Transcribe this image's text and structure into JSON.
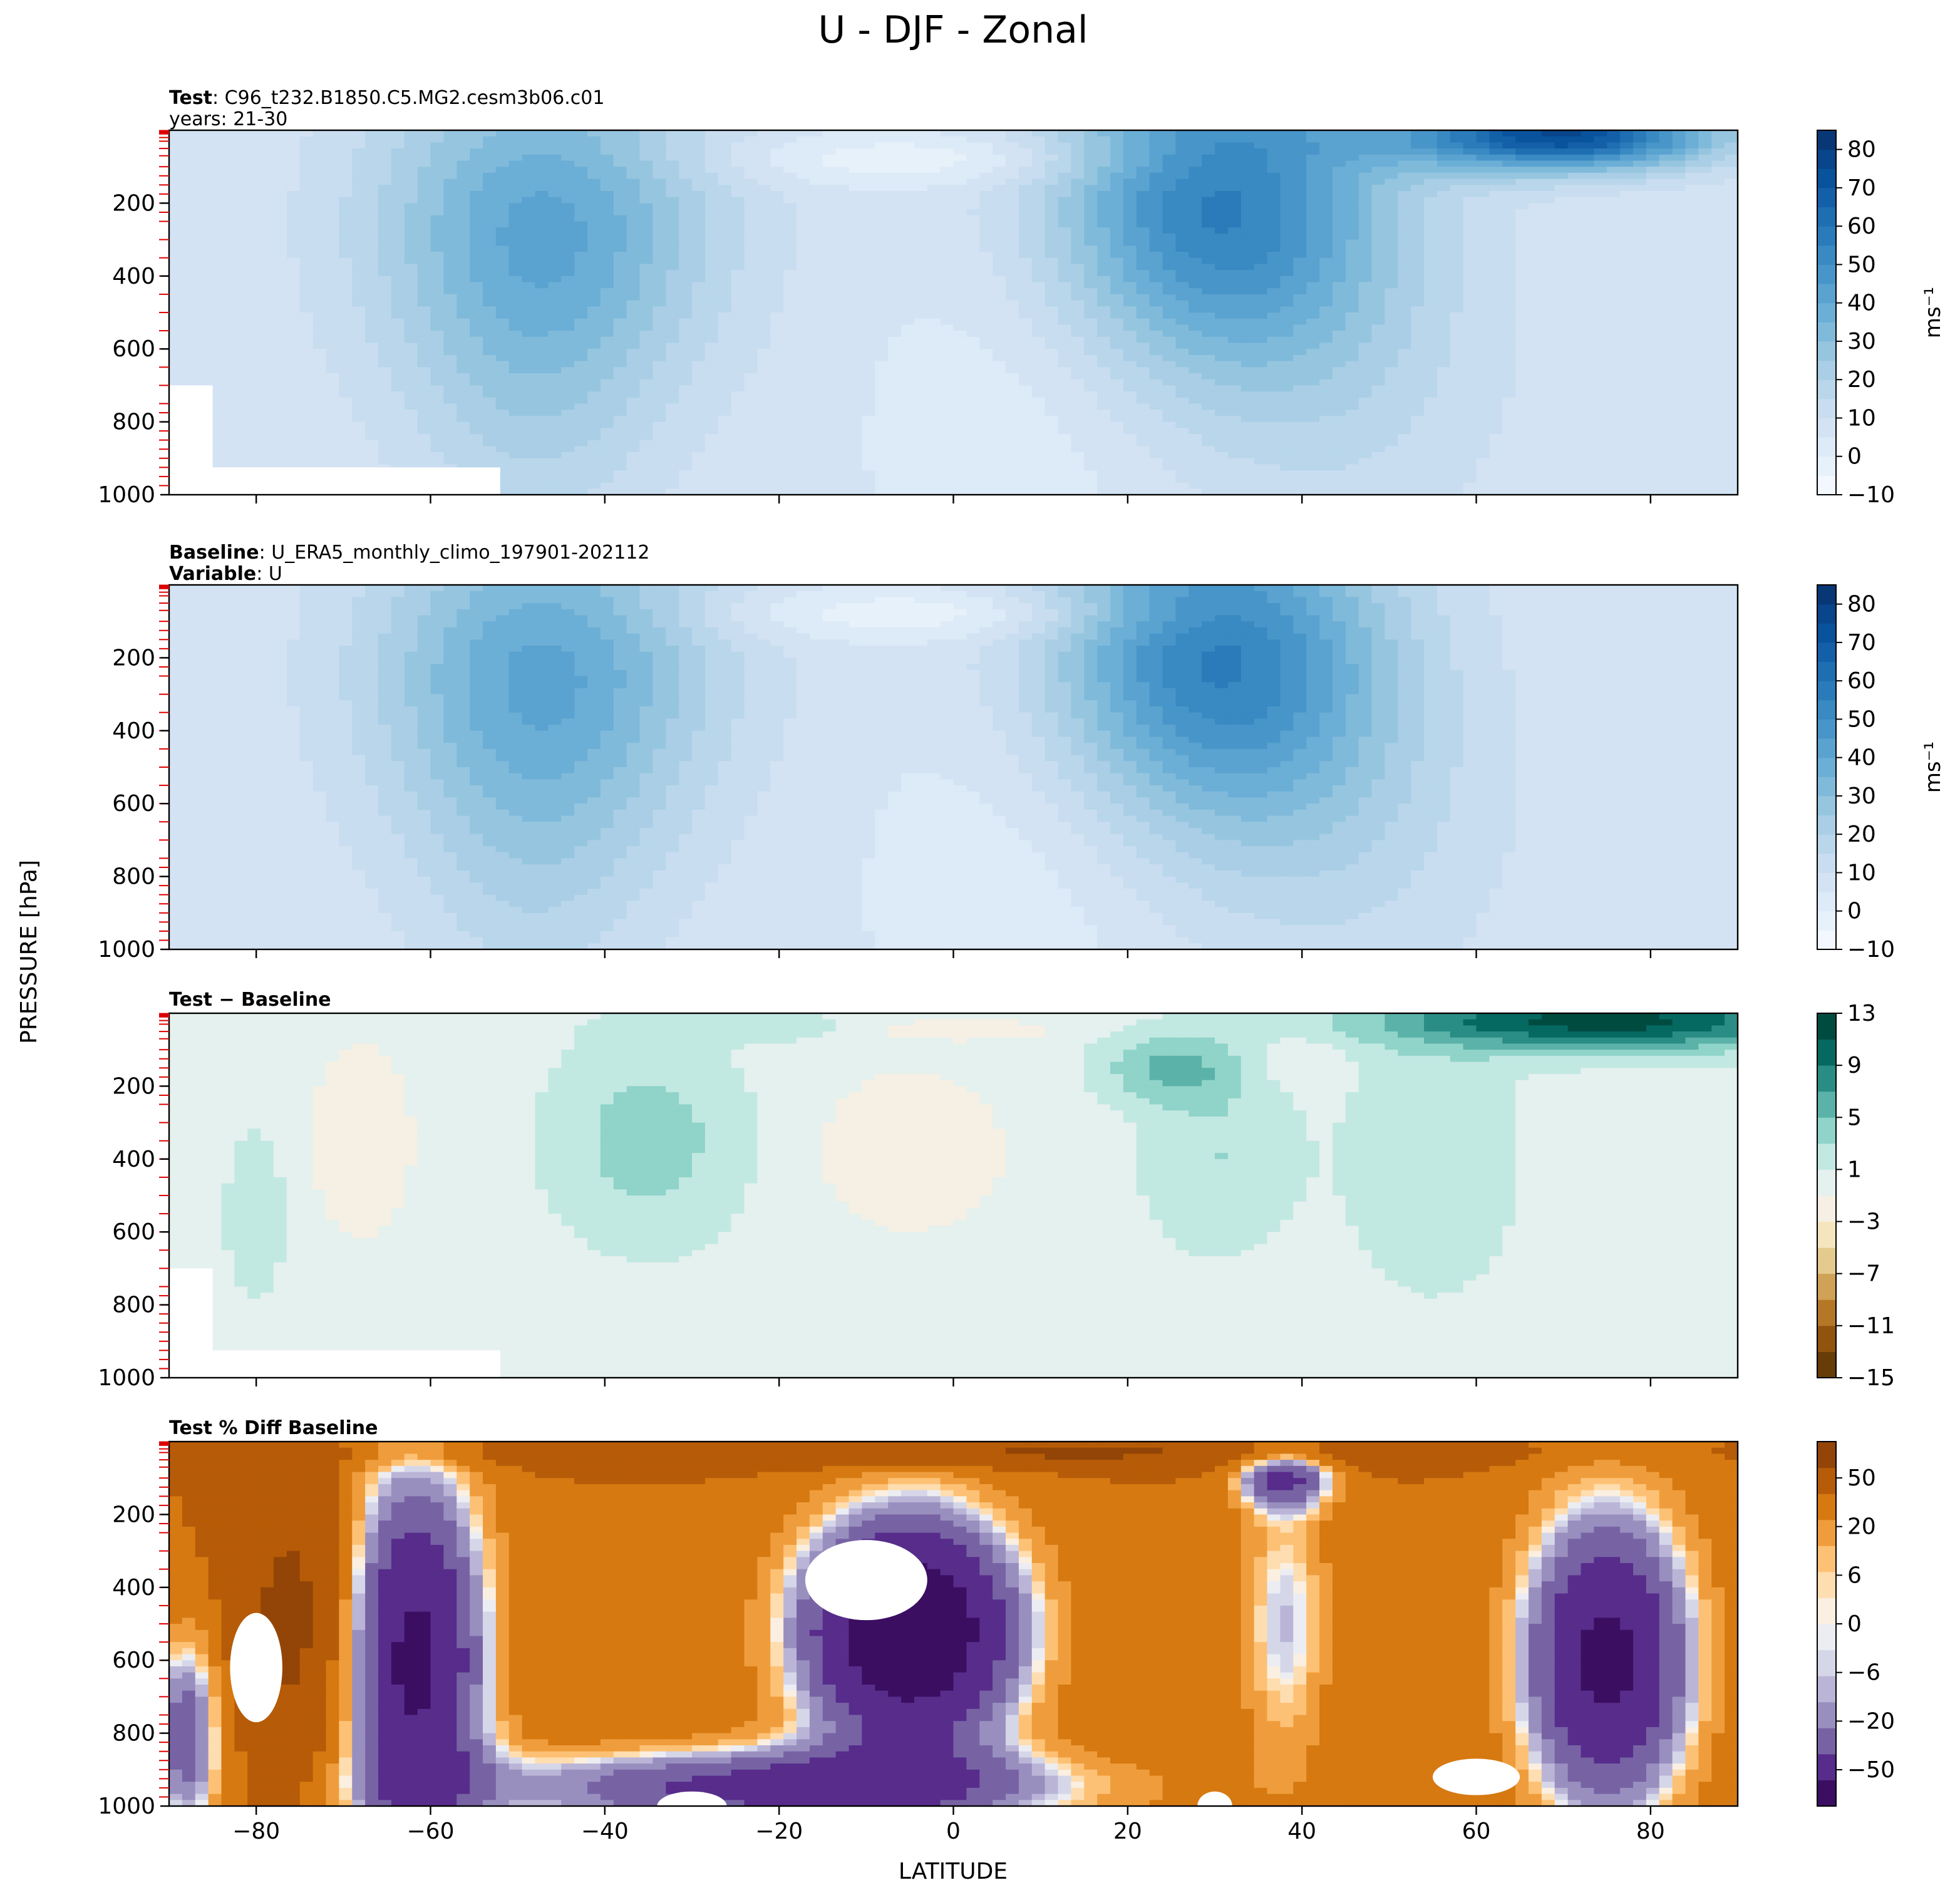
{
  "figure": {
    "title": "U - DJF - Zonal",
    "ylabel": "PRESSURE [hPa]",
    "xlabel": "LATITUDE"
  },
  "chart_data": [
    {
      "type": "heatmap",
      "panel": "test",
      "header": {
        "bold": "Test",
        "sep": ": ",
        "text": "C96_t232.B1850.C5.MG2.cesm3b06.c01",
        "line2": "years: 21-30"
      },
      "xlim": [
        -90,
        90
      ],
      "ylim": [
        1000,
        0
      ],
      "xticks": [
        -80,
        -60,
        -40,
        -20,
        0,
        20,
        40,
        60,
        80
      ],
      "yticks": [
        200,
        400,
        600,
        800,
        1000
      ],
      "colormap": "Blues",
      "colorbar": {
        "ticks": [
          "80",
          "70",
          "60",
          "50",
          "40",
          "30",
          "20",
          "10",
          "0",
          "−10"
        ],
        "vmin": -10,
        "vmax": 85,
        "label": "ms⁻¹"
      },
      "jets": [
        {
          "lat": -47,
          "p": 250,
          "u": 40
        },
        {
          "lat": 30,
          "p": 200,
          "u": 55
        },
        {
          "lat": 70,
          "p": 10,
          "u": 70
        }
      ]
    },
    {
      "type": "heatmap",
      "panel": "baseline",
      "header": {
        "bold": "Baseline",
        "sep": ": ",
        "text": "U_ERA5_monthly_climo_197901-202112",
        "bold2": "Variable",
        "sep2": ": ",
        "text2": "U"
      },
      "xlim": [
        -90,
        90
      ],
      "ylim": [
        1000,
        0
      ],
      "xticks": [
        -80,
        -60,
        -40,
        -20,
        0,
        20,
        40,
        60,
        80
      ],
      "yticks": [
        200,
        400,
        600,
        800,
        1000
      ],
      "colormap": "Blues",
      "colorbar": {
        "ticks": [
          "80",
          "70",
          "60",
          "50",
          "40",
          "30",
          "20",
          "10",
          "0",
          "−10"
        ],
        "vmin": -10,
        "vmax": 85,
        "label": "ms⁻¹"
      },
      "jets": [
        {
          "lat": -47,
          "p": 230,
          "u": 40
        },
        {
          "lat": 30,
          "p": 200,
          "u": 55
        }
      ]
    },
    {
      "type": "heatmap",
      "panel": "diff",
      "header": {
        "bold": "Test − Baseline"
      },
      "xlim": [
        -90,
        90
      ],
      "ylim": [
        1000,
        0
      ],
      "xticks": [
        -80,
        -60,
        -40,
        -20,
        0,
        20,
        40,
        60,
        80
      ],
      "yticks": [
        200,
        400,
        600,
        800,
        1000
      ],
      "colormap": "BrBG",
      "colorbar": {
        "ticks": [
          "13",
          "9",
          "5",
          "1",
          "−3",
          "−7",
          "−11",
          "−15"
        ],
        "vmin": -15,
        "vmax": 13
      }
    },
    {
      "type": "heatmap",
      "panel": "pct",
      "header": {
        "bold": "Test % Diff Baseline"
      },
      "xlim": [
        -90,
        90
      ],
      "ylim": [
        1000,
        0
      ],
      "xticks": [
        -80,
        -60,
        -40,
        -20,
        0,
        20,
        40,
        60,
        80
      ],
      "yticks": [
        200,
        400,
        600,
        800,
        1000
      ],
      "colormap": "PuOr",
      "colorbar": {
        "ticks": [
          "50",
          "20",
          "6",
          "0",
          "−6",
          "−20",
          "−50"
        ]
      }
    }
  ]
}
